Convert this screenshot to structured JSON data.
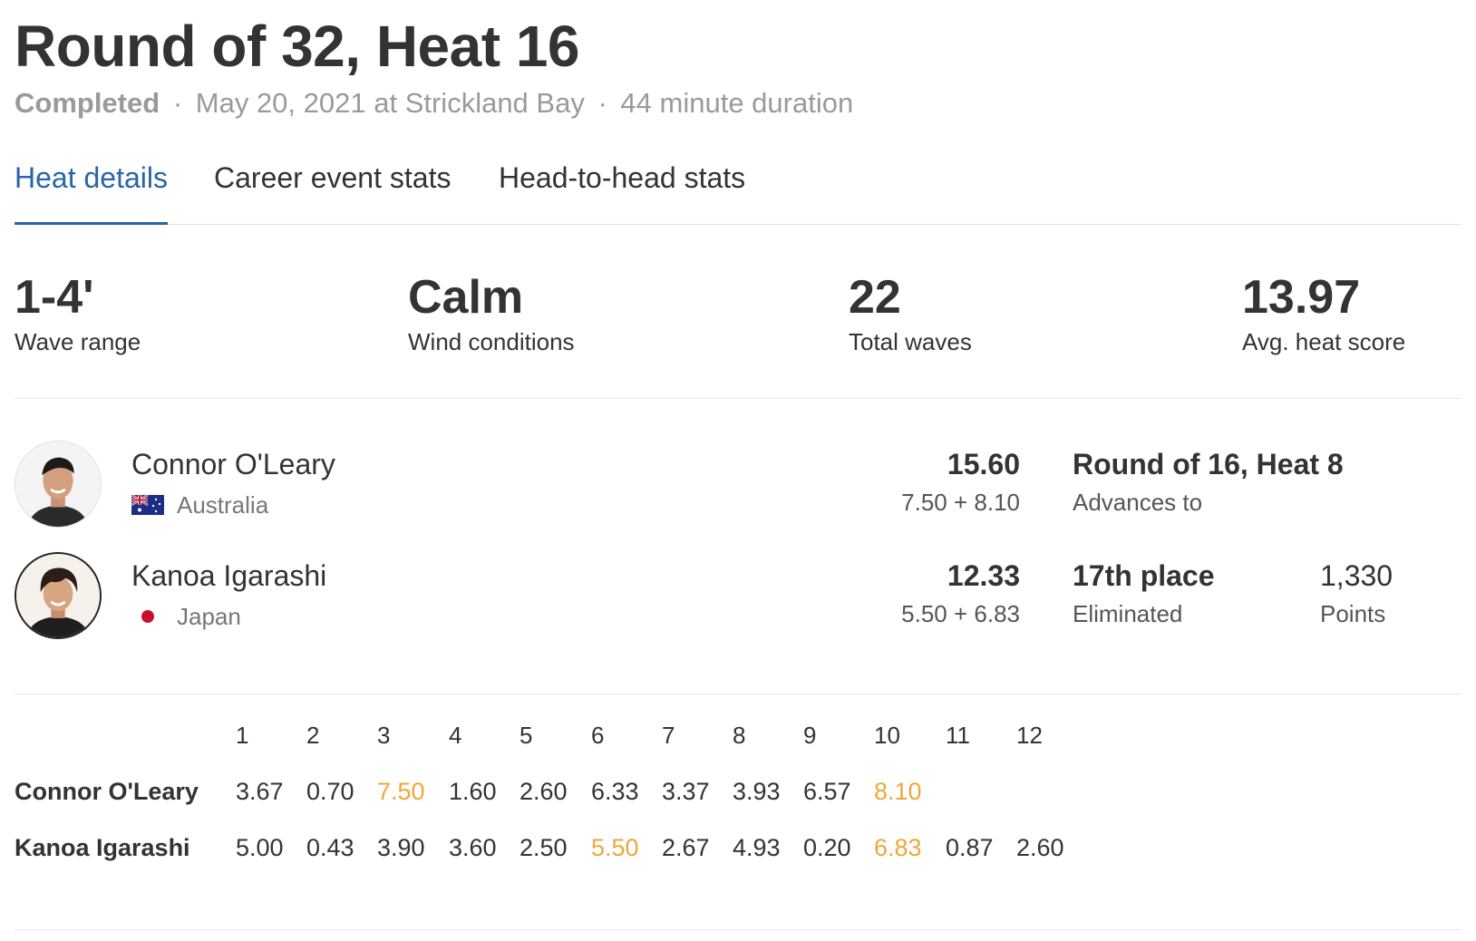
{
  "heat": {
    "title": "Round of 32, Heat 16",
    "status": "Completed",
    "sep1": "·",
    "date_location": "May 20, 2021 at Strickland Bay",
    "sep2": "·",
    "duration": "44 minute duration"
  },
  "tabs": [
    {
      "label": "Heat details",
      "active": true
    },
    {
      "label": "Career event stats",
      "active": false
    },
    {
      "label": "Head-to-head stats",
      "active": false
    }
  ],
  "stats": [
    {
      "value": "1-4'",
      "label": "Wave range"
    },
    {
      "value": "Calm",
      "label": "Wind conditions"
    },
    {
      "value": "22",
      "label": "Total waves"
    },
    {
      "value": "13.97",
      "label": "Avg. heat score"
    }
  ],
  "athletes": [
    {
      "name": "Connor O'Leary",
      "country": "Australia",
      "flag_icon": "australia-flag-icon",
      "total": "15.60",
      "breakdown": "7.50 + 8.10",
      "result_main": "Round of 16, Heat 8",
      "result_sub": "Advances to"
    },
    {
      "name": "Kanoa Igarashi",
      "country": "Japan",
      "flag_icon": "japan-flag-icon",
      "total": "12.33",
      "breakdown": "5.50 + 6.83",
      "result_main": "17th place",
      "result_sub": "Eliminated",
      "points_value": "1,330",
      "points_label": "Points"
    }
  ],
  "colors": {
    "accent": "#2a64a8",
    "best_wave": "#f0a63a",
    "text": "#333333",
    "muted": "#9a9a9a"
  },
  "waves": {
    "headers": [
      "1",
      "2",
      "3",
      "4",
      "5",
      "6",
      "7",
      "8",
      "9",
      "10",
      "11",
      "12"
    ],
    "rows": [
      {
        "name": "Connor O'Leary",
        "scores": [
          "3.67",
          "0.70",
          "7.50",
          "1.60",
          "2.60",
          "6.33",
          "3.37",
          "3.93",
          "6.57",
          "8.10"
        ],
        "best": [
          2,
          9
        ]
      },
      {
        "name": "Kanoa Igarashi",
        "scores": [
          "5.00",
          "0.43",
          "3.90",
          "3.60",
          "2.50",
          "5.50",
          "2.67",
          "4.93",
          "0.20",
          "6.83",
          "0.87",
          "2.60"
        ],
        "best": [
          5,
          9
        ]
      }
    ]
  }
}
